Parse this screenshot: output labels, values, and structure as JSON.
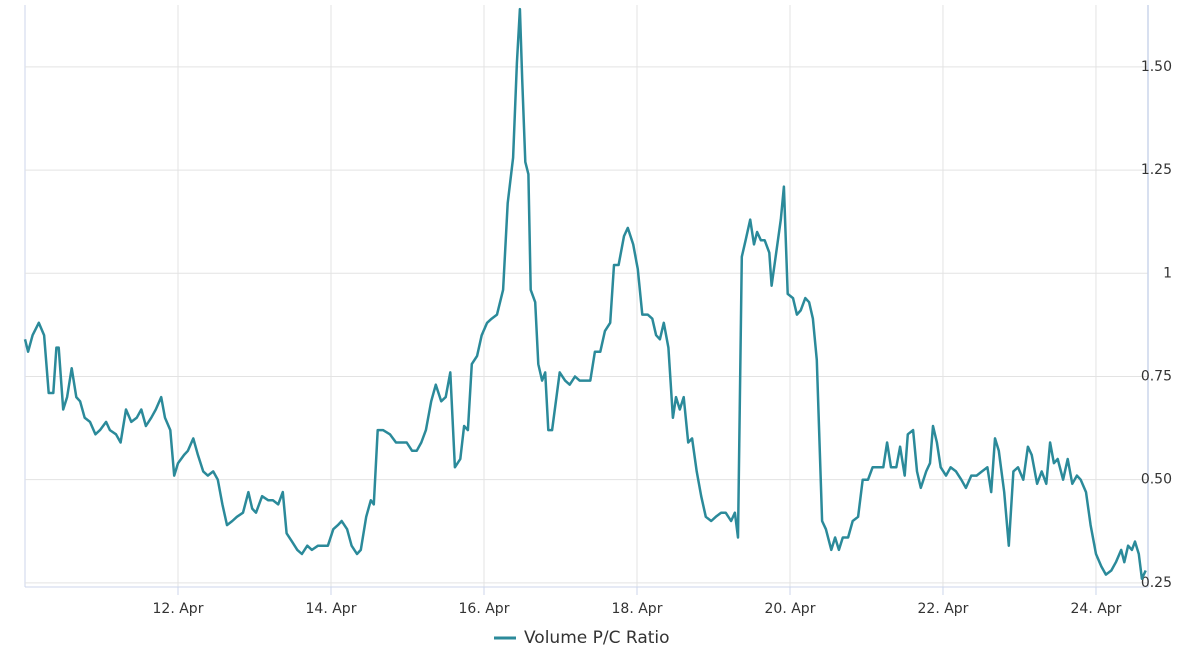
{
  "chart_data": {
    "type": "line",
    "x": [
      10.0,
      10.04,
      10.1,
      10.18,
      10.25,
      10.31,
      10.37,
      10.41,
      10.44,
      10.5,
      10.55,
      10.61,
      10.67,
      10.72,
      10.78,
      10.85,
      10.92,
      10.98,
      11.06,
      11.11,
      11.19,
      11.25,
      11.32,
      11.39,
      11.46,
      11.52,
      11.58,
      11.65,
      11.71,
      11.78,
      11.83,
      11.9,
      11.95,
      12.0,
      12.08,
      12.13,
      12.2,
      12.26,
      12.33,
      12.39,
      12.46,
      12.52,
      12.58,
      12.64,
      12.71,
      12.77,
      12.85,
      12.92,
      12.97,
      13.02,
      13.1,
      13.18,
      13.24,
      13.31,
      13.37,
      13.42,
      13.49,
      13.56,
      13.62,
      13.69,
      13.75,
      13.83,
      13.88,
      13.96,
      14.03,
      14.09,
      14.14,
      14.21,
      14.27,
      14.34,
      14.39,
      14.46,
      14.52,
      14.56,
      14.61,
      14.68,
      14.77,
      14.85,
      14.92,
      14.99,
      15.06,
      15.12,
      15.18,
      15.24,
      15.31,
      15.37,
      15.44,
      15.5,
      15.56,
      15.62,
      15.69,
      15.74,
      15.79,
      15.84,
      15.91,
      15.97,
      16.04,
      16.1,
      16.17,
      16.25,
      16.31,
      16.38,
      16.43,
      16.47,
      16.5,
      16.54,
      16.58,
      16.61,
      16.67,
      16.71,
      16.76,
      16.8,
      16.84,
      16.89,
      16.94,
      16.99,
      17.06,
      17.12,
      17.19,
      17.25,
      17.32,
      17.39,
      17.45,
      17.52,
      17.58,
      17.65,
      17.7,
      17.76,
      17.83,
      17.88,
      17.95,
      18.01,
      18.07,
      18.14,
      18.2,
      18.25,
      18.3,
      18.35,
      18.41,
      18.47,
      18.51,
      18.56,
      18.61,
      18.67,
      18.72,
      18.78,
      18.84,
      18.9,
      18.97,
      19.03,
      19.1,
      19.16,
      19.23,
      19.28,
      19.32,
      19.37,
      19.42,
      19.48,
      19.53,
      19.57,
      19.62,
      19.67,
      19.73,
      19.76,
      19.82,
      19.88,
      19.92,
      19.97,
      20.04,
      20.09,
      20.14,
      20.2,
      20.25,
      20.3,
      20.35,
      20.42,
      20.47,
      20.54,
      20.59,
      20.64,
      20.69,
      20.76,
      20.82,
      20.89,
      20.95,
      21.02,
      21.08,
      21.15,
      21.22,
      21.27,
      21.32,
      21.39,
      21.44,
      21.5,
      21.54,
      21.61,
      21.66,
      21.71,
      21.78,
      21.83,
      21.87,
      21.92,
      21.97,
      22.04,
      22.1,
      22.17,
      22.24,
      22.3,
      22.37,
      22.44,
      22.51,
      22.58,
      22.63,
      22.68,
      22.73,
      22.8,
      22.86,
      22.92,
      22.98,
      23.05,
      23.11,
      23.16,
      23.23,
      23.29,
      23.35,
      23.4,
      23.45,
      23.5,
      23.57,
      23.63,
      23.69,
      23.75,
      23.8,
      23.87,
      23.93,
      24.0,
      24.07,
      24.13,
      24.2,
      24.26,
      24.33,
      24.37,
      24.42,
      24.47,
      24.51,
      24.56,
      24.6,
      24.65
    ],
    "series": [
      {
        "name": "Volume P/C Ratio",
        "color": "#2b8a9a",
        "values": [
          0.84,
          0.81,
          0.85,
          0.88,
          0.85,
          0.71,
          0.71,
          0.82,
          0.82,
          0.67,
          0.7,
          0.77,
          0.7,
          0.69,
          0.65,
          0.64,
          0.61,
          0.62,
          0.64,
          0.62,
          0.61,
          0.59,
          0.67,
          0.64,
          0.65,
          0.67,
          0.63,
          0.65,
          0.67,
          0.7,
          0.65,
          0.62,
          0.51,
          0.54,
          0.56,
          0.57,
          0.6,
          0.56,
          0.52,
          0.51,
          0.52,
          0.5,
          0.44,
          0.39,
          0.4,
          0.41,
          0.42,
          0.47,
          0.43,
          0.42,
          0.46,
          0.45,
          0.45,
          0.44,
          0.47,
          0.37,
          0.35,
          0.33,
          0.32,
          0.34,
          0.33,
          0.34,
          0.34,
          0.34,
          0.38,
          0.39,
          0.4,
          0.38,
          0.34,
          0.32,
          0.33,
          0.41,
          0.45,
          0.44,
          0.62,
          0.62,
          0.61,
          0.59,
          0.59,
          0.59,
          0.57,
          0.57,
          0.59,
          0.62,
          0.69,
          0.73,
          0.69,
          0.7,
          0.76,
          0.53,
          0.55,
          0.63,
          0.62,
          0.78,
          0.8,
          0.85,
          0.88,
          0.89,
          0.9,
          0.96,
          1.17,
          1.28,
          1.51,
          1.64,
          1.47,
          1.27,
          1.24,
          0.96,
          0.93,
          0.78,
          0.74,
          0.76,
          0.62,
          0.62,
          0.69,
          0.76,
          0.74,
          0.73,
          0.75,
          0.74,
          0.74,
          0.74,
          0.81,
          0.81,
          0.86,
          0.88,
          1.02,
          1.02,
          1.09,
          1.11,
          1.07,
          1.01,
          0.9,
          0.9,
          0.89,
          0.85,
          0.84,
          0.88,
          0.82,
          0.65,
          0.7,
          0.67,
          0.7,
          0.59,
          0.6,
          0.52,
          0.46,
          0.41,
          0.4,
          0.41,
          0.42,
          0.42,
          0.4,
          0.42,
          0.36,
          1.04,
          1.08,
          1.13,
          1.07,
          1.1,
          1.08,
          1.08,
          1.05,
          0.97,
          1.05,
          1.13,
          1.21,
          0.95,
          0.94,
          0.9,
          0.91,
          0.94,
          0.93,
          0.89,
          0.79,
          0.4,
          0.38,
          0.33,
          0.36,
          0.33,
          0.36,
          0.36,
          0.4,
          0.41,
          0.5,
          0.5,
          0.53,
          0.53,
          0.53,
          0.59,
          0.53,
          0.53,
          0.58,
          0.51,
          0.61,
          0.62,
          0.52,
          0.48,
          0.52,
          0.54,
          0.63,
          0.59,
          0.53,
          0.51,
          0.53,
          0.52,
          0.5,
          0.48,
          0.51,
          0.51,
          0.52,
          0.53,
          0.47,
          0.6,
          0.57,
          0.47,
          0.34,
          0.52,
          0.53,
          0.5,
          0.58,
          0.56,
          0.49,
          0.52,
          0.49,
          0.59,
          0.54,
          0.55,
          0.5,
          0.55,
          0.49,
          0.51,
          0.5,
          0.47,
          0.39,
          0.32,
          0.29,
          0.27,
          0.28,
          0.3,
          0.33,
          0.3,
          0.34,
          0.33,
          0.35,
          0.32,
          0.26,
          0.28
        ]
      }
    ],
    "xlim": [
      10,
      24.68
    ],
    "xticks": [
      {
        "value": 12,
        "label": "12. Apr"
      },
      {
        "value": 14,
        "label": "14. Apr"
      },
      {
        "value": 16,
        "label": "16. Apr"
      },
      {
        "value": 18,
        "label": "18. Apr"
      },
      {
        "value": 20,
        "label": "20. Apr"
      },
      {
        "value": 22,
        "label": "22. Apr"
      },
      {
        "value": 24,
        "label": "24. Apr"
      }
    ],
    "ylim": [
      0.24,
      1.65
    ],
    "yticks": [
      0.25,
      {
        "value": 0.5,
        "label": "0.50"
      },
      0.75,
      1,
      1.25,
      {
        "value": 1.5,
        "label": "1.50"
      }
    ],
    "grid": true,
    "legend": "bottom"
  }
}
